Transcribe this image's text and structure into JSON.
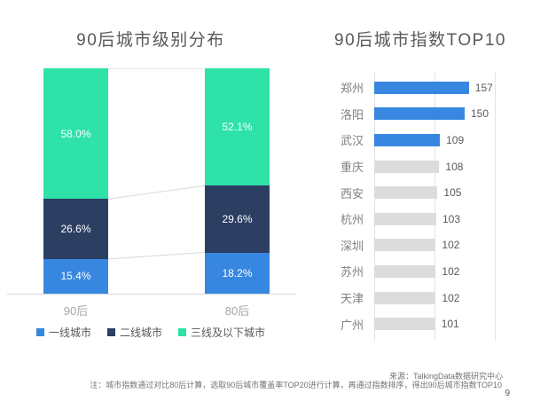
{
  "page": {
    "number": "9",
    "source_note": "来源：TalkingData数据研究中心",
    "footnote": "注：城市指数通过对比80后计算，选取90后城市覆盖率TOP20进行计算，再通过指数排序，得出90后城市指数TOP10"
  },
  "colors": {
    "tier1_blue": "#3787e0",
    "tier2_navy": "#2c3e62",
    "tier3_green": "#2ee2a8",
    "bar_gray": "#dcdcdc",
    "connector_gray": "#d9d9d9"
  },
  "chart_data": [
    {
      "type": "bar",
      "subtype": "stacked-column",
      "title": "90后城市级别分布",
      "categories": [
        "90后",
        "80后"
      ],
      "series": [
        {
          "name": "一线城市",
          "values": [
            15.4,
            18.2
          ],
          "labels": [
            "15.4%",
            "18.2%"
          ],
          "color": "#3787e0"
        },
        {
          "name": "二线城市",
          "values": [
            26.6,
            29.6
          ],
          "labels": [
            "26.6%",
            "29.6%"
          ],
          "color": "#2c3e62"
        },
        {
          "name": "三线及以下城市",
          "values": [
            58.0,
            52.1
          ],
          "labels": [
            "58.0%",
            "52.1%"
          ],
          "color": "#2ee2a8"
        }
      ],
      "stack_order_top_to_bottom": [
        2,
        1,
        0
      ],
      "ylim": [
        0,
        100
      ],
      "legend_position": "bottom",
      "connector_lines": true
    },
    {
      "type": "bar",
      "subtype": "horizontal",
      "title": "90后城市指数TOP10",
      "categories": [
        "郑州",
        "洛阳",
        "武汉",
        "重庆",
        "西安",
        "杭州",
        "深圳",
        "苏州",
        "天津",
        "广州"
      ],
      "values": [
        157,
        150,
        109,
        108,
        105,
        103,
        102,
        102,
        102,
        101
      ],
      "highlighted_categories": [
        "郑州",
        "洛阳",
        "武汉"
      ],
      "xlim": [
        0,
        200
      ],
      "gridline_values": [
        0,
        100,
        200
      ],
      "grid": true,
      "legend_position": "none"
    }
  ]
}
